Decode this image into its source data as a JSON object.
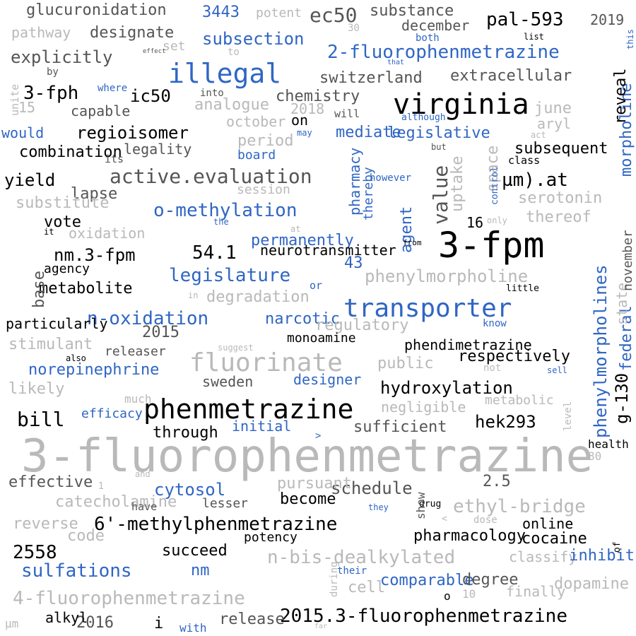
{
  "colors": {
    "black": "#000000",
    "dark_gray": "#555555",
    "light_gray": "#b9b9b9",
    "blue": "#2f66c4"
  },
  "words": [
    {
      "text": "3-fluorophenmetrazine",
      "color": "light_gray",
      "weight": 9
    },
    {
      "text": "3-fpm",
      "color": "black",
      "weight": 8
    },
    {
      "text": "phenmetrazine",
      "color": "black",
      "weight": 7
    },
    {
      "text": "virginia",
      "color": "black",
      "weight": 7
    },
    {
      "text": "transporter",
      "color": "blue",
      "weight": 7
    },
    {
      "text": "illegal",
      "color": "blue",
      "weight": 6
    },
    {
      "text": "fluorinate",
      "color": "light_gray",
      "weight": 6
    },
    {
      "text": "phenylmorpholines",
      "color": "blue",
      "weight": 5
    },
    {
      "text": "ec50",
      "color": "dark_gray",
      "weight": 5
    },
    {
      "text": "value",
      "color": "dark_gray",
      "weight": 5
    },
    {
      "text": "2015.3-fluorophenmetrazine",
      "color": "black",
      "weight": 5
    },
    {
      "text": "4-fluorophenmetrazine",
      "color": "light_gray",
      "weight": 5
    },
    {
      "text": "2-fluorophenmetrazine",
      "color": "blue",
      "weight": 5
    },
    {
      "text": "6'-methylphenmetrazine",
      "color": "black",
      "weight": 5
    },
    {
      "text": "n‑bis‑dealkylated",
      "color": "light_gray",
      "weight": 5
    },
    {
      "text": "ethyl‑bridge",
      "color": "light_gray",
      "weight": 5
    },
    {
      "text": "active.evaluation",
      "color": "dark_gray",
      "weight": 5
    },
    {
      "text": "o‑methylation",
      "color": "blue",
      "weight": 5
    },
    {
      "text": "n‑oxidation",
      "color": "blue",
      "weight": 5
    },
    {
      "text": "phenylmorpholine",
      "color": "light_gray",
      "weight": 5
    },
    {
      "text": "pal-593",
      "color": "black",
      "weight": 5
    },
    {
      "text": "hydroxylation",
      "color": "black",
      "weight": 5
    },
    {
      "text": "morpholine",
      "color": "blue",
      "weight": 4
    },
    {
      "text": "legislature",
      "color": "blue",
      "weight": 4
    },
    {
      "text": "legislative",
      "color": "blue",
      "weight": 4
    },
    {
      "text": "regioisomer",
      "color": "black",
      "weight": 4
    },
    {
      "text": "sulfations",
      "color": "blue",
      "weight": 4
    },
    {
      "text": "subsection",
      "color": "blue",
      "weight": 4
    },
    {
      "text": "schedule",
      "color": "dark_gray",
      "weight": 4
    },
    {
      "text": "nm.3-fpm",
      "color": "black",
      "weight": 4
    },
    {
      "text": "µm).at",
      "color": "black",
      "weight": 4
    },
    {
      "text": "54.1",
      "color": "black",
      "weight": 4
    },
    {
      "text": "3-fph",
      "color": "black",
      "weight": 4
    },
    {
      "text": "ic50",
      "color": "black",
      "weight": 4
    },
    {
      "text": "bill",
      "color": "black",
      "weight": 4
    },
    {
      "text": "2558",
      "color": "black",
      "weight": 4
    },
    {
      "text": "permanently",
      "color": "blue",
      "weight": 4
    },
    {
      "text": "explicitly",
      "color": "dark_gray",
      "weight": 4
    },
    {
      "text": "designate",
      "color": "dark_gray",
      "weight": 4
    },
    {
      "text": "glucuronidation",
      "color": "dark_gray",
      "weight": 4
    },
    {
      "text": "switzerland",
      "color": "dark_gray",
      "weight": 4
    },
    {
      "text": "extracellular",
      "color": "dark_gray",
      "weight": 4
    },
    {
      "text": "norepinephrine",
      "color": "blue",
      "weight": 4
    },
    {
      "text": "hek293",
      "color": "black",
      "weight": 4
    },
    {
      "text": "g-130",
      "color": "black",
      "weight": 4
    },
    {
      "text": "federal",
      "color": "blue",
      "weight": 4
    },
    {
      "text": "sufficient",
      "color": "dark_gray",
      "weight": 4
    },
    {
      "text": "phendimetrazine",
      "color": "black",
      "weight": 3
    },
    {
      "text": "3443",
      "color": "blue",
      "weight": 3
    },
    {
      "text": "substance",
      "color": "dark_gray",
      "weight": 3
    },
    {
      "text": "2019",
      "color": "dark_gray",
      "weight": 3
    },
    {
      "text": "december",
      "color": "dark_gray",
      "weight": 3
    },
    {
      "text": "pathway",
      "color": "light_gray",
      "weight": 3
    },
    {
      "text": "potent",
      "color": "light_gray",
      "weight": 3
    },
    {
      "text": "set",
      "color": "light_gray",
      "weight": 3
    },
    {
      "text": "chemistry",
      "color": "dark_gray",
      "weight": 3
    },
    {
      "text": "analogue",
      "color": "light_gray",
      "weight": 3
    },
    {
      "text": "capable",
      "color": "dark_gray",
      "weight": 3
    },
    {
      "text": "october",
      "color": "light_gray",
      "weight": 3
    },
    {
      "text": "2018",
      "color": "light_gray",
      "weight": 3
    },
    {
      "text": "on",
      "color": "black",
      "weight": 3
    },
    {
      "text": "would",
      "color": "blue",
      "weight": 3
    },
    {
      "text": "mediate",
      "color": "blue",
      "weight": 3
    },
    {
      "text": "aryl",
      "color": "light_gray",
      "weight": 3
    },
    {
      "text": "period",
      "color": "light_gray",
      "weight": 3
    },
    {
      "text": "board",
      "color": "blue",
      "weight": 3
    },
    {
      "text": "combination",
      "color": "black",
      "weight": 3
    },
    {
      "text": "legality",
      "color": "dark_gray",
      "weight": 3
    },
    {
      "text": "subsequent",
      "color": "black",
      "weight": 3
    },
    {
      "text": "reveal",
      "color": "black",
      "weight": 3
    },
    {
      "text": "yield",
      "color": "black",
      "weight": 3
    },
    {
      "text": "lapse",
      "color": "dark_gray",
      "weight": 3
    },
    {
      "text": "session",
      "color": "light_gray",
      "weight": 3
    },
    {
      "text": "substitute",
      "color": "light_gray",
      "weight": 3
    },
    {
      "text": "vote",
      "color": "black",
      "weight": 3
    },
    {
      "text": "serotonin",
      "color": "light_gray",
      "weight": 3
    },
    {
      "text": "thereof",
      "color": "light_gray",
      "weight": 3
    },
    {
      "text": "oxidation",
      "color": "light_gray",
      "weight": 3
    },
    {
      "text": "neurotransmitter",
      "color": "black",
      "weight": 3
    },
    {
      "text": "agency",
      "color": "black",
      "weight": 3
    },
    {
      "text": "metabolite",
      "color": "black",
      "weight": 3
    },
    {
      "text": "degradation",
      "color": "light_gray",
      "weight": 3
    },
    {
      "text": "narcotic",
      "color": "blue",
      "weight": 3
    },
    {
      "text": "2015",
      "color": "dark_gray",
      "weight": 3
    },
    {
      "text": "regulatory",
      "color": "light_gray",
      "weight": 3
    },
    {
      "text": "stimulant",
      "color": "light_gray",
      "weight": 3
    },
    {
      "text": "releaser",
      "color": "dark_gray",
      "weight": 3
    },
    {
      "text": "monoamine",
      "color": "black",
      "weight": 3
    },
    {
      "text": "respectively",
      "color": "black",
      "weight": 3
    },
    {
      "text": "public",
      "color": "light_gray",
      "weight": 3
    },
    {
      "text": "sweden",
      "color": "dark_gray",
      "weight": 3
    },
    {
      "text": "designer",
      "color": "blue",
      "weight": 3
    },
    {
      "text": "likely",
      "color": "light_gray",
      "weight": 3
    },
    {
      "text": "negligible",
      "color": "light_gray",
      "weight": 3
    },
    {
      "text": "metabolic",
      "color": "light_gray",
      "weight": 3
    },
    {
      "text": "efficacy",
      "color": "blue",
      "weight": 3
    },
    {
      "text": "through",
      "color": "black",
      "weight": 3
    },
    {
      "text": "initial",
      "color": "blue",
      "weight": 3
    },
    {
      "text": "effective",
      "color": "dark_gray",
      "weight": 3
    },
    {
      "text": "cytosol",
      "color": "blue",
      "weight": 3
    },
    {
      "text": "pursuant",
      "color": "light_gray",
      "weight": 3
    },
    {
      "text": "2.5",
      "color": "dark_gray",
      "weight": 3
    },
    {
      "text": "catecholamine",
      "color": "light_gray",
      "weight": 3
    },
    {
      "text": "lesser",
      "color": "dark_gray",
      "weight": 3
    },
    {
      "text": "become",
      "color": "black",
      "weight": 3
    },
    {
      "text": "reverse",
      "color": "light_gray",
      "weight": 3
    },
    {
      "text": "code",
      "color": "light_gray",
      "weight": 3
    },
    {
      "text": "potency",
      "color": "black",
      "weight": 3
    },
    {
      "text": "pharmacology",
      "color": "black",
      "weight": 3
    },
    {
      "text": "online",
      "color": "black",
      "weight": 3
    },
    {
      "text": "cocaine",
      "color": "black",
      "weight": 3
    },
    {
      "text": "succeed",
      "color": "black",
      "weight": 3
    },
    {
      "text": "classify",
      "color": "light_gray",
      "weight": 3
    },
    {
      "text": "inhibit",
      "color": "blue",
      "weight": 3
    },
    {
      "text": "nm",
      "color": "blue",
      "weight": 3
    },
    {
      "text": "comparable",
      "color": "blue",
      "weight": 3
    },
    {
      "text": "degree",
      "color": "dark_gray",
      "weight": 3
    },
    {
      "text": "dopamine",
      "color": "light_gray",
      "weight": 3
    },
    {
      "text": "finally",
      "color": "light_gray",
      "weight": 3
    },
    {
      "text": "2016",
      "color": "dark_gray",
      "weight": 3
    },
    {
      "text": "release",
      "color": "dark_gray",
      "weight": 3
    },
    {
      "text": "alkyl",
      "color": "black",
      "weight": 3
    },
    {
      "text": "µm",
      "color": "light_gray",
      "weight": 3
    },
    {
      "text": "with",
      "color": "blue",
      "weight": 2
    },
    {
      "text": "base",
      "color": "dark_gray",
      "weight": 2
    },
    {
      "text": "pharmacy",
      "color": "blue",
      "weight": 3
    },
    {
      "text": "thereby",
      "color": "blue",
      "weight": 3
    },
    {
      "text": "agent",
      "color": "blue",
      "weight": 3
    },
    {
      "text": "uptake",
      "color": "light_gray",
      "weight": 3
    },
    {
      "text": "space",
      "color": "light_gray",
      "weight": 3
    },
    {
      "text": "state",
      "color": "light_gray",
      "weight": 3
    },
    {
      "text": "november",
      "color": "dark_gray",
      "weight": 3
    },
    {
      "text": "particularly",
      "color": "black",
      "weight": 3
    },
    {
      "text": "june",
      "color": "light_gray",
      "weight": 3
    },
    {
      "text": "43",
      "color": "blue",
      "weight": 3
    },
    {
      "text": "16",
      "color": "black",
      "weight": 3
    },
    {
      "text": "15",
      "color": "light_gray",
      "weight": 3
    },
    {
      "text": "80",
      "color": "light_gray",
      "weight": 2
    },
    {
      "text": "health",
      "color": "black",
      "weight": 2
    },
    {
      "text": "cell",
      "color": "light_gray",
      "weight": 2
    },
    {
      "text": "i",
      "color": "black",
      "weight": 3
    },
    {
      "text": "o",
      "color": "black",
      "weight": 3
    },
    {
      "text": "10",
      "color": "light_gray",
      "weight": 2
    },
    {
      "text": "30",
      "color": "light_gray",
      "weight": 2
    },
    {
      "text": "both",
      "color": "blue",
      "weight": 1
    },
    {
      "text": "list",
      "color": "black",
      "weight": 1
    },
    {
      "text": "this",
      "color": "blue",
      "weight": 1
    },
    {
      "text": "to",
      "color": "light_gray",
      "weight": 1
    },
    {
      "text": "that",
      "color": "blue",
      "weight": 1
    },
    {
      "text": "effect",
      "color": "dark_gray",
      "weight": 1
    },
    {
      "text": "by",
      "color": "dark_gray",
      "weight": 1
    },
    {
      "text": "where",
      "color": "blue",
      "weight": 1
    },
    {
      "text": "into",
      "color": "dark_gray",
      "weight": 1
    },
    {
      "text": "unite",
      "color": "light_gray",
      "weight": 1
    },
    {
      "text": "will",
      "color": "dark_gray",
      "weight": 1
    },
    {
      "text": "although",
      "color": "blue",
      "weight": 1
    },
    {
      "text": "may",
      "color": "blue",
      "weight": 1
    },
    {
      "text": "act",
      "color": "light_gray",
      "weight": 1
    },
    {
      "text": "but",
      "color": "dark_gray",
      "weight": 1
    },
    {
      "text": "its",
      "color": "dark_gray",
      "weight": 1
    },
    {
      "text": "class",
      "color": "black",
      "weight": 1
    },
    {
      "text": "control",
      "color": "blue",
      "weight": 1
    },
    {
      "text": "however",
      "color": "blue",
      "weight": 1
    },
    {
      "text": "only",
      "color": "light_gray",
      "weight": 1
    },
    {
      "text": "the",
      "color": "blue",
      "weight": 1
    },
    {
      "text": "it",
      "color": "black",
      "weight": 1
    },
    {
      "text": "at",
      "color": "light_gray",
      "weight": 1
    },
    {
      "text": "from",
      "color": "black",
      "weight": 1
    },
    {
      "text": "in",
      "color": "light_gray",
      "weight": 1
    },
    {
      "text": "or",
      "color": "blue",
      "weight": 1
    },
    {
      "text": "little",
      "color": "black",
      "weight": 1
    },
    {
      "text": "know",
      "color": "blue",
      "weight": 1
    },
    {
      "text": "suggest",
      "color": "light_gray",
      "weight": 1
    },
    {
      "text": "also",
      "color": "black",
      "weight": 1
    },
    {
      "text": "not",
      "color": "light_gray",
      "weight": 1
    },
    {
      "text": "sell",
      "color": "blue",
      "weight": 1
    },
    {
      "text": "much",
      "color": "light_gray",
      "weight": 1
    },
    {
      "text": ">",
      "color": "blue",
      "weight": 1
    },
    {
      "text": "level",
      "color": "light_gray",
      "weight": 1
    },
    {
      "text": "1",
      "color": "light_gray",
      "weight": 1
    },
    {
      "text": "and",
      "color": "light_gray",
      "weight": 1
    },
    {
      "text": "have",
      "color": "dark_gray",
      "weight": 1
    },
    {
      "text": "they",
      "color": "blue",
      "weight": 1
    },
    {
      "text": "drug",
      "color": "black",
      "weight": 1
    },
    {
      "text": "show",
      "color": "dark_gray",
      "weight": 1
    },
    {
      "text": "<",
      "color": "light_gray",
      "weight": 1
    },
    {
      "text": "dose",
      "color": "light_gray",
      "weight": 1
    },
    {
      "text": "of",
      "color": "black",
      "weight": 1
    },
    {
      "text": "during",
      "color": "light_gray",
      "weight": 1
    },
    {
      "text": "their",
      "color": "blue",
      "weight": 1
    },
    {
      "text": "far",
      "color": "light_gray",
      "weight": 1
    },
    {
      "text": "see",
      "color": "light_gray",
      "weight": 1
    }
  ]
}
